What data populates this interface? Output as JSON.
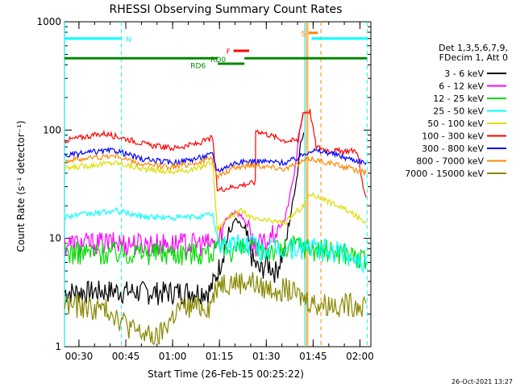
{
  "chart_data": {
    "type": "line",
    "title": "RHESSI Observing Summary Count Rates",
    "xlabel": "Start Time (26-Feb-15 00:25:22)",
    "ylabel": "Count Rate (s⁻¹ detector⁻¹)",
    "yscale": "log",
    "ylim": [
      1,
      1000
    ],
    "xlim_min": [
      25.37,
      123.5
    ],
    "y_ticks": [
      {
        "value": 1,
        "label": "1"
      },
      {
        "value": 10,
        "label": "10"
      },
      {
        "value": 100,
        "label": "100"
      },
      {
        "value": 1000,
        "label": "1000"
      }
    ],
    "x_ticks": [
      {
        "value": 30,
        "label": "00:30"
      },
      {
        "value": 45,
        "label": "00:45"
      },
      {
        "value": 60,
        "label": "01:00"
      },
      {
        "value": 75,
        "label": "01:15"
      },
      {
        "value": 90,
        "label": "01:30"
      },
      {
        "value": 105,
        "label": "01:45"
      },
      {
        "value": 120,
        "label": "02:00"
      }
    ],
    "legend": {
      "placement": "right",
      "header": [
        "Det 1,3,5,6,7,9,",
        "FDecim 1, Att 0"
      ]
    },
    "series": [
      {
        "name": "3 - 6 keV",
        "color": "#000000",
        "points": [
          [
            25.4,
            3.2
          ],
          [
            40,
            3.3
          ],
          [
            55,
            3.2
          ],
          [
            72,
            3.3
          ],
          [
            74.5,
            5
          ],
          [
            77,
            9
          ],
          [
            80,
            15
          ],
          [
            83,
            12
          ],
          [
            86,
            6
          ],
          [
            88,
            5
          ],
          [
            90,
            6
          ],
          [
            93,
            5
          ],
          [
            96,
            8
          ],
          [
            100,
            40
          ],
          [
            101,
            80
          ],
          [
            102,
            95
          ]
        ]
      },
      {
        "name": "6 - 12 keV",
        "color": "#ff00ff",
        "points": [
          [
            25.4,
            9
          ],
          [
            40,
            9.2
          ],
          [
            55,
            9
          ],
          [
            72,
            9
          ],
          [
            74.5,
            9
          ],
          [
            77,
            15
          ],
          [
            80,
            18
          ],
          [
            83,
            15
          ],
          [
            86,
            9
          ],
          [
            90,
            9
          ],
          [
            96,
            15
          ],
          [
            99,
            40
          ],
          [
            101,
            110
          ],
          [
            101.8,
            140
          ]
        ]
      },
      {
        "name": "12 - 25 keV",
        "color": "#00dd00",
        "points": [
          [
            25.4,
            7.5
          ],
          [
            40,
            7.5
          ],
          [
            55,
            7.5
          ],
          [
            72,
            7.5
          ],
          [
            74.5,
            8
          ],
          [
            86,
            8
          ],
          [
            96,
            8
          ],
          [
            100,
            9
          ],
          [
            106,
            8
          ],
          [
            116,
            7.5
          ],
          [
            122,
            6
          ]
        ]
      },
      {
        "name": "25 - 50 keV",
        "color": "#00ffff",
        "points": [
          [
            25.4,
            16
          ],
          [
            35,
            17
          ],
          [
            42,
            18
          ],
          [
            50,
            16
          ],
          [
            60,
            15.5
          ],
          [
            70,
            16
          ],
          [
            72.8,
            17
          ],
          [
            74.3,
            9
          ],
          [
            76,
            9
          ],
          [
            78,
            9
          ],
          [
            86,
            9
          ],
          [
            88,
            8
          ],
          [
            96,
            8
          ],
          [
            102,
            8.5
          ],
          [
            106,
            8
          ],
          [
            115,
            7.5
          ],
          [
            122,
            6
          ]
        ]
      },
      {
        "name": "50 - 100 keV",
        "color": "#dddd00",
        "points": [
          [
            25.4,
            44
          ],
          [
            35,
            48
          ],
          [
            42,
            50
          ],
          [
            50,
            44
          ],
          [
            60,
            41
          ],
          [
            68,
            44
          ],
          [
            72.8,
            52
          ],
          [
            74.3,
            12
          ],
          [
            78,
            16
          ],
          [
            82,
            18
          ],
          [
            86,
            15
          ],
          [
            96,
            14
          ],
          [
            100,
            18
          ],
          [
            102,
            20
          ],
          [
            104,
            26
          ],
          [
            110,
            22
          ],
          [
            116,
            18
          ],
          [
            122,
            14
          ]
        ]
      },
      {
        "name": "100 - 300 keV",
        "color": "#ff0000",
        "points": [
          [
            25.4,
            80
          ],
          [
            32,
            87
          ],
          [
            38,
            93
          ],
          [
            44,
            85
          ],
          [
            52,
            73
          ],
          [
            60,
            68
          ],
          [
            68,
            75
          ],
          [
            72.8,
            85
          ],
          [
            74.3,
            28
          ],
          [
            86.5,
            33
          ],
          [
            86.6,
            100
          ],
          [
            96,
            80
          ],
          [
            100,
            80
          ],
          [
            101.8,
            145
          ],
          [
            104,
            150
          ],
          [
            106,
            70
          ],
          [
            110,
            65
          ],
          [
            114,
            64
          ],
          [
            119,
            65
          ],
          [
            121,
            30
          ],
          [
            122,
            24
          ]
        ]
      },
      {
        "name": "300 - 800 keV",
        "color": "#0000ff",
        "points": [
          [
            25.4,
            58
          ],
          [
            35,
            63
          ],
          [
            42,
            65
          ],
          [
            50,
            54
          ],
          [
            60,
            50
          ],
          [
            68,
            55
          ],
          [
            72.8,
            60
          ],
          [
            74.3,
            42
          ],
          [
            80,
            50
          ],
          [
            86,
            52
          ],
          [
            96,
            50
          ],
          [
            100,
            55
          ],
          [
            102,
            60
          ],
          [
            104,
            65
          ],
          [
            110,
            62
          ],
          [
            116,
            55
          ],
          [
            122,
            50
          ]
        ]
      },
      {
        "name": "800 - 7000 keV",
        "color": "#ff8800",
        "points": [
          [
            25.4,
            52
          ],
          [
            35,
            56
          ],
          [
            42,
            58
          ],
          [
            50,
            48
          ],
          [
            60,
            46
          ],
          [
            68,
            50
          ],
          [
            72.8,
            55
          ],
          [
            74.3,
            37
          ],
          [
            80,
            45
          ],
          [
            86,
            48
          ],
          [
            96,
            44
          ],
          [
            100,
            48
          ],
          [
            102,
            52
          ],
          [
            104,
            55
          ],
          [
            110,
            50
          ],
          [
            116,
            45
          ],
          [
            122,
            40
          ]
        ]
      },
      {
        "name": "7000 - 15000 keV",
        "color": "#888800",
        "points": [
          [
            25.4,
            2.5
          ],
          [
            40,
            2.2
          ],
          [
            48,
            1.4
          ],
          [
            55,
            1.2
          ],
          [
            62,
            2.3
          ],
          [
            72,
            2.4
          ],
          [
            74.5,
            4
          ],
          [
            86,
            4
          ],
          [
            88,
            3.5
          ],
          [
            96,
            3.5
          ],
          [
            100,
            3
          ],
          [
            106,
            2.5
          ],
          [
            116,
            2.5
          ],
          [
            122,
            2.5
          ]
        ]
      }
    ],
    "flag_bars": [
      {
        "label": "N",
        "color": "#00ffff",
        "y": 700,
        "segments": [
          [
            25.4,
            43.5
          ],
          [
            104.5,
            122.3
          ]
        ]
      },
      {
        "label": "RD6",
        "color": "#008800",
        "y": 460,
        "segments": [
          [
            25.4,
            74.5
          ],
          [
            83,
            122.3
          ]
        ]
      },
      {
        "label": "RD0",
        "color": "#008800",
        "y": 410,
        "segments": [
          [
            74.5,
            83
          ]
        ]
      },
      {
        "label": "F",
        "color": "#ff0000",
        "y": 540,
        "segments": [
          [
            79.5,
            84.5
          ]
        ]
      },
      {
        "label": "S",
        "color": "#ff8800",
        "y": 790,
        "segments": [
          [
            103.5,
            106.5
          ]
        ]
      }
    ],
    "vertical_markers": [
      {
        "x": 43.6,
        "color": "#00ffff",
        "style": "dashed"
      },
      {
        "x": 122.3,
        "color": "#00ffff",
        "style": "dashed"
      },
      {
        "x": 107.5,
        "color": "#ff8800",
        "style": "dashed"
      },
      {
        "x": 102.8,
        "color": "#ff8800",
        "style": "solid"
      },
      {
        "x": 103.3,
        "color": "#ff8800",
        "style": "solid"
      },
      {
        "x": 102.3,
        "color": "#00ffff",
        "style": "solid"
      },
      {
        "x": 25.4,
        "color": "#00ffff",
        "style": "solid"
      }
    ]
  },
  "footer": {
    "timestamp": "26-Oct-2021 13:27"
  }
}
